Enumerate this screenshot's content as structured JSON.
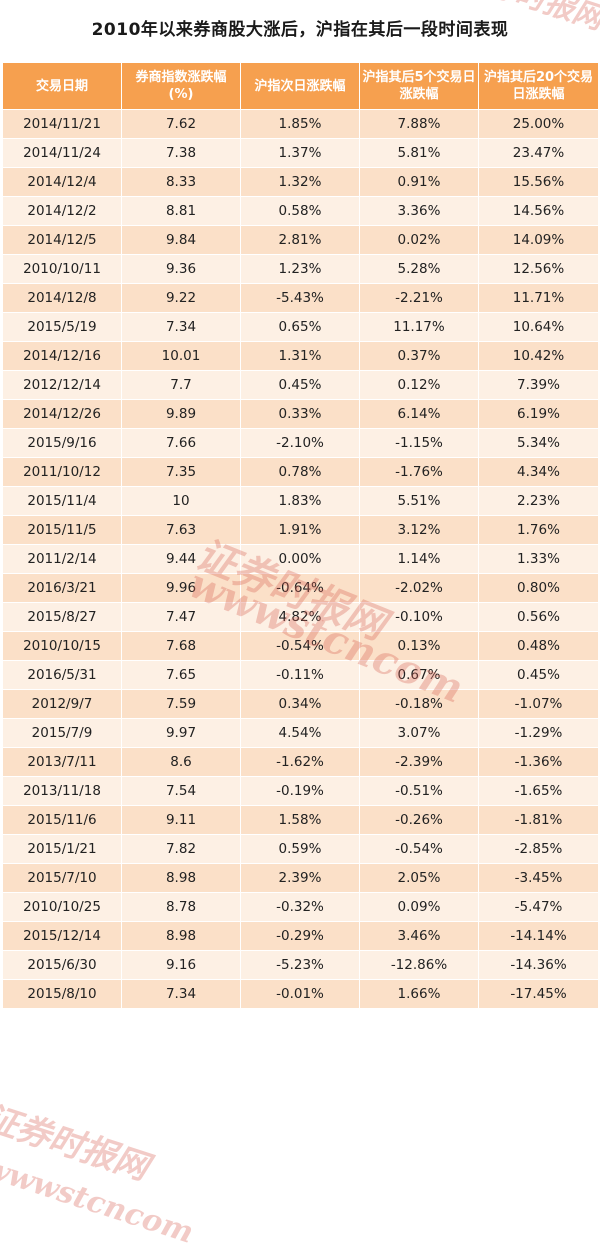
{
  "title": "2010年以来券商股大涨后，沪指在其后一段时间表现",
  "watermarks": [
    "证券时报网",
    "证券时报网",
    "wwwstcncom",
    "证券时报网",
    "wwwstcncom"
  ],
  "colors": {
    "header_bg": "#f6a04f",
    "row_odd": "#fbe0c8",
    "row_even": "#fdf0e4"
  },
  "table": {
    "headers": [
      "交易日期",
      "券商指数涨跌幅(%)",
      "沪指次日涨跌幅",
      "沪指其后5个交易日涨跌幅",
      "沪指其后20个交易日涨跌幅"
    ],
    "rows": [
      [
        "2014/11/21",
        "7.62",
        "1.85%",
        "7.88%",
        "25.00%"
      ],
      [
        "2014/11/24",
        "7.38",
        "1.37%",
        "5.81%",
        "23.47%"
      ],
      [
        "2014/12/4",
        "8.33",
        "1.32%",
        "0.91%",
        "15.56%"
      ],
      [
        "2014/12/2",
        "8.81",
        "0.58%",
        "3.36%",
        "14.56%"
      ],
      [
        "2014/12/5",
        "9.84",
        "2.81%",
        "0.02%",
        "14.09%"
      ],
      [
        "2010/10/11",
        "9.36",
        "1.23%",
        "5.28%",
        "12.56%"
      ],
      [
        "2014/12/8",
        "9.22",
        "-5.43%",
        "-2.21%",
        "11.71%"
      ],
      [
        "2015/5/19",
        "7.34",
        "0.65%",
        "11.17%",
        "10.64%"
      ],
      [
        "2014/12/16",
        "10.01",
        "1.31%",
        "0.37%",
        "10.42%"
      ],
      [
        "2012/12/14",
        "7.7",
        "0.45%",
        "0.12%",
        "7.39%"
      ],
      [
        "2014/12/26",
        "9.89",
        "0.33%",
        "6.14%",
        "6.19%"
      ],
      [
        "2015/9/16",
        "7.66",
        "-2.10%",
        "-1.15%",
        "5.34%"
      ],
      [
        "2011/10/12",
        "7.35",
        "0.78%",
        "-1.76%",
        "4.34%"
      ],
      [
        "2015/11/4",
        "10",
        "1.83%",
        "5.51%",
        "2.23%"
      ],
      [
        "2015/11/5",
        "7.63",
        "1.91%",
        "3.12%",
        "1.76%"
      ],
      [
        "2011/2/14",
        "9.44",
        "0.00%",
        "1.14%",
        "1.33%"
      ],
      [
        "2016/3/21",
        "9.96",
        "-0.64%",
        "-2.02%",
        "0.80%"
      ],
      [
        "2015/8/27",
        "7.47",
        "4.82%",
        "-0.10%",
        "0.56%"
      ],
      [
        "2010/10/15",
        "7.68",
        "-0.54%",
        "0.13%",
        "0.48%"
      ],
      [
        "2016/5/31",
        "7.65",
        "-0.11%",
        "0.67%",
        "0.45%"
      ],
      [
        "2012/9/7",
        "7.59",
        "0.34%",
        "-0.18%",
        "-1.07%"
      ],
      [
        "2015/7/9",
        "9.97",
        "4.54%",
        "3.07%",
        "-1.29%"
      ],
      [
        "2013/7/11",
        "8.6",
        "-1.62%",
        "-2.39%",
        "-1.36%"
      ],
      [
        "2013/11/18",
        "7.54",
        "-0.19%",
        "-0.51%",
        "-1.65%"
      ],
      [
        "2015/11/6",
        "9.11",
        "1.58%",
        "-0.26%",
        "-1.81%"
      ],
      [
        "2015/1/21",
        "7.82",
        "0.59%",
        "-0.54%",
        "-2.85%"
      ],
      [
        "2015/7/10",
        "8.98",
        "2.39%",
        "2.05%",
        "-3.45%"
      ],
      [
        "2010/10/25",
        "8.78",
        "-0.32%",
        "0.09%",
        "-5.47%"
      ],
      [
        "2015/12/14",
        "8.98",
        "-0.29%",
        "3.46%",
        "-14.14%"
      ],
      [
        "2015/6/30",
        "9.16",
        "-5.23%",
        "-12.86%",
        "-14.36%"
      ],
      [
        "2015/8/10",
        "7.34",
        "-0.01%",
        "1.66%",
        "-17.45%"
      ]
    ]
  }
}
